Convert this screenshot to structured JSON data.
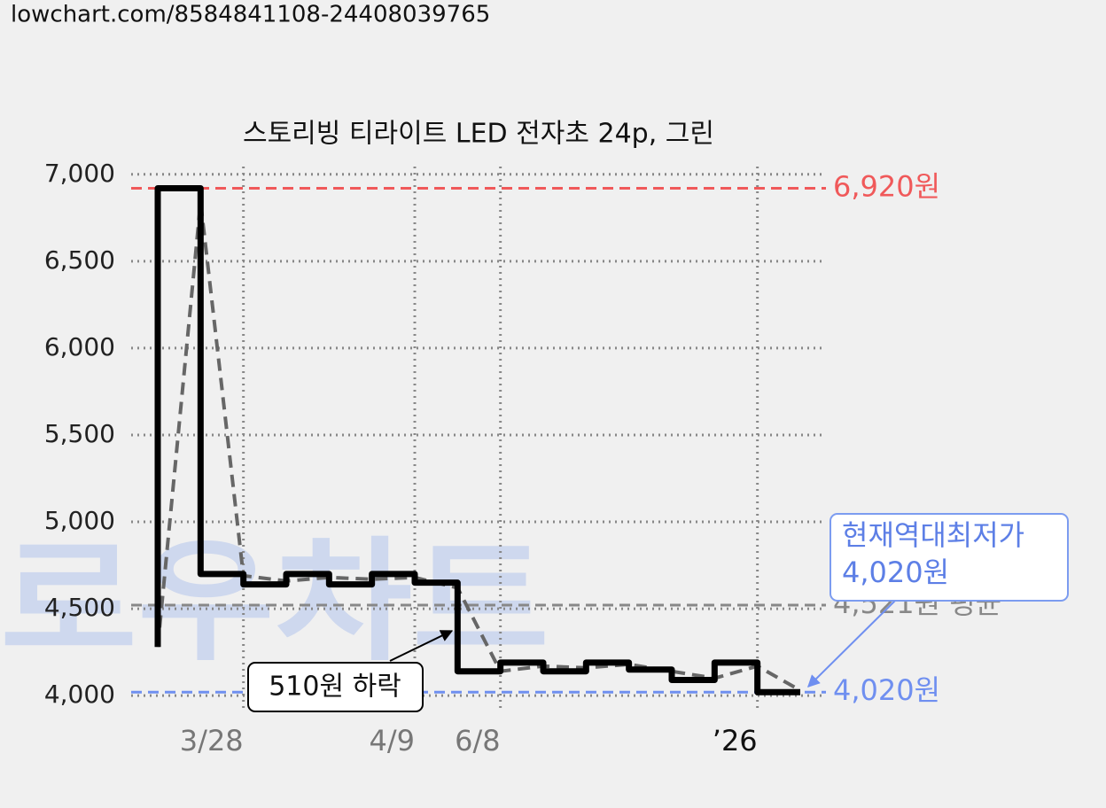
{
  "source": "lowchart.com/8584841108-24408039765",
  "chart_data": {
    "type": "line",
    "title": "스토리빙 티라이트 LED 전자초 24p, 그린",
    "watermark": "로우차트",
    "xlim": [
      0,
      15
    ],
    "ylim": [
      3960,
      7050
    ],
    "yticks": [
      {
        "value": 4000,
        "label": "4,000"
      },
      {
        "value": 4500,
        "label": "4,500"
      },
      {
        "value": 5000,
        "label": "5,000"
      },
      {
        "value": 5500,
        "label": "5,500"
      },
      {
        "value": 6000,
        "label": "6,000"
      },
      {
        "value": 6500,
        "label": "6,500"
      },
      {
        "value": 7000,
        "label": "7,000"
      }
    ],
    "xticks": [
      {
        "value": 2,
        "label": "3/28"
      },
      {
        "value": 6,
        "label": "4/9"
      },
      {
        "value": 8,
        "label": "6/8"
      },
      {
        "value": 14,
        "label": "’26"
      }
    ],
    "grid": true,
    "series": [
      {
        "color": "#000000",
        "step": true,
        "x": [
          0,
          0,
          1,
          2,
          3,
          4,
          5,
          6,
          7,
          8,
          9,
          10,
          11,
          12,
          13,
          14,
          15
        ],
        "values": [
          4280,
          6920,
          4700,
          4640,
          4700,
          4640,
          4700,
          4650,
          4140,
          4190,
          4140,
          4190,
          4150,
          4090,
          4190,
          4020,
          4020
        ]
      },
      {
        "color": "#666666",
        "dashed": true,
        "x": [
          0,
          1,
          2,
          3,
          4,
          5,
          6,
          7,
          8,
          9,
          10,
          11,
          12,
          13,
          14,
          15
        ],
        "values": [
          4280,
          6840,
          4690,
          4660,
          4680,
          4670,
          4680,
          4620,
          4140,
          4170,
          4160,
          4180,
          4140,
          4100,
          4170,
          4030
        ]
      }
    ],
    "reference_lines": [
      {
        "value": 6920,
        "label": "6,920원",
        "color": "#f0595a"
      },
      {
        "value": 4521,
        "label": "4,521원 평균",
        "color": "#888888"
      },
      {
        "value": 4020,
        "label": "4,020원",
        "color": "#6f8ff0"
      }
    ],
    "annotations": [
      {
        "text": "510원 하락"
      },
      {
        "lines": [
          "현재역대최저가",
          "4,020원"
        ]
      }
    ]
  }
}
